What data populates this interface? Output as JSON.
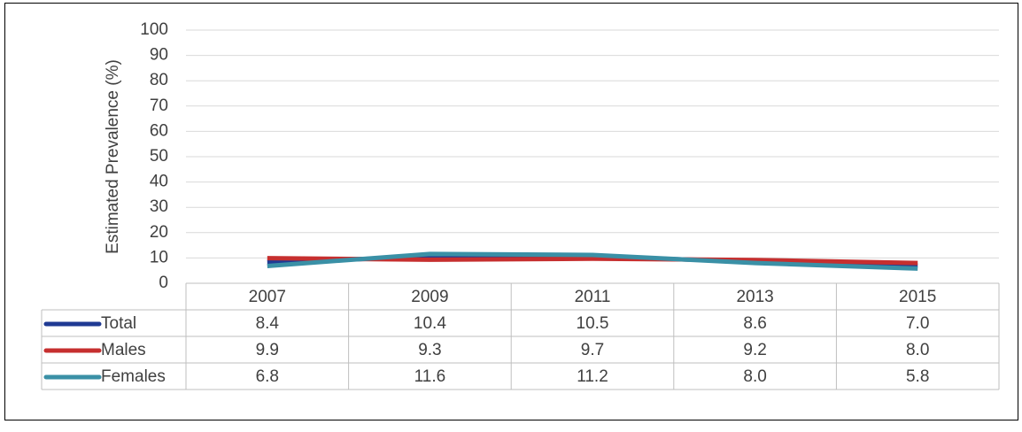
{
  "chart_data": {
    "type": "line",
    "y_label": "Estimated Prevalence (%)",
    "categories": [
      "2007",
      "2009",
      "2011",
      "2013",
      "2015"
    ],
    "series": [
      {
        "name": "Total",
        "color": "#1f3a93",
        "values": [
          8.4,
          10.4,
          10.5,
          8.6,
          7.0
        ],
        "value_labels": [
          "8.4",
          "10.4",
          "10.5",
          "8.6",
          "7.0"
        ]
      },
      {
        "name": "Males",
        "color": "#c62f2f",
        "values": [
          9.9,
          9.3,
          9.7,
          9.2,
          8.0
        ],
        "value_labels": [
          "9.9",
          "9.3",
          "9.7",
          "9.2",
          "8.0"
        ]
      },
      {
        "name": "Females",
        "color": "#3a90a6",
        "values": [
          6.8,
          11.6,
          11.2,
          8.0,
          5.8
        ],
        "value_labels": [
          "6.8",
          "11.6",
          "11.2",
          "8.0",
          "5.8"
        ]
      }
    ],
    "ylim": [
      0,
      100
    ],
    "yticks": [
      0,
      10,
      20,
      30,
      40,
      50,
      60,
      70,
      80,
      90,
      100
    ],
    "grid": true
  }
}
